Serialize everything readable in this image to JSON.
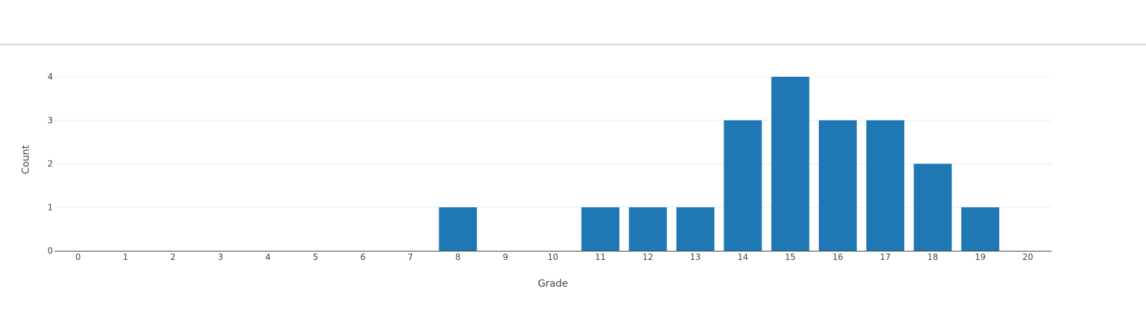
{
  "chart_data": {
    "type": "bar",
    "categories": [
      "0",
      "1",
      "2",
      "3",
      "4",
      "5",
      "6",
      "7",
      "8",
      "9",
      "10",
      "11",
      "12",
      "13",
      "14",
      "15",
      "16",
      "17",
      "18",
      "19",
      "20"
    ],
    "values": [
      0,
      0,
      0,
      0,
      0,
      0,
      0,
      0,
      1,
      0,
      0,
      1,
      1,
      1,
      3,
      4,
      3,
      3,
      2,
      1,
      0
    ],
    "title": "",
    "xlabel": "Grade",
    "ylabel": "Count",
    "ylim": [
      0,
      4
    ],
    "yticks": [
      "0",
      "1",
      "2",
      "3",
      "4"
    ],
    "grid": "horizontal",
    "bar_color": "#1f77b4"
  }
}
